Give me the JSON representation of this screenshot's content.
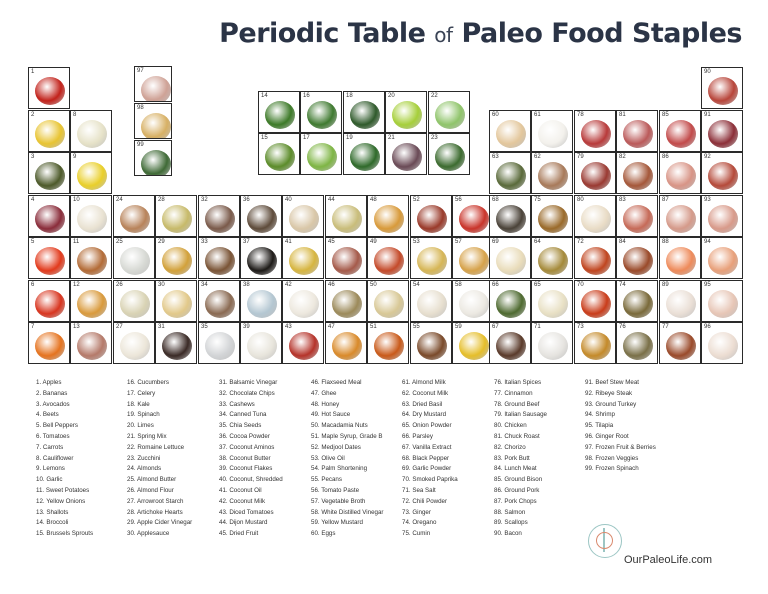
{
  "header": {
    "title_part1": "Periodic Table",
    "title_of": "of",
    "title_part2": "Paleo Food Staples"
  },
  "footer": {
    "brand": "OurPaleoLife.com"
  },
  "cells": [
    {
      "n": "1",
      "c": "#c2221b"
    },
    {
      "n": "2",
      "c": "#e8c432"
    },
    {
      "n": "3",
      "c": "#4d5a2a"
    },
    {
      "n": "4",
      "c": "#8a2c3a"
    },
    {
      "n": "5",
      "c": "#e23a1c"
    },
    {
      "n": "6",
      "c": "#d8351f"
    },
    {
      "n": "7",
      "c": "#e5731f"
    },
    {
      "n": "8",
      "c": "#e6e2c8"
    },
    {
      "n": "9",
      "c": "#e9cf2a"
    },
    {
      "n": "10",
      "c": "#e9e2d2"
    },
    {
      "n": "11",
      "c": "#b36b36"
    },
    {
      "n": "12",
      "c": "#d99a3c"
    },
    {
      "n": "13",
      "c": "#b57a6a"
    },
    {
      "n": "14",
      "c": "#3d7a28"
    },
    {
      "n": "15",
      "c": "#5c8c2a"
    },
    {
      "n": "16",
      "c": "#3f7a30"
    },
    {
      "n": "17",
      "c": "#7eb544"
    },
    {
      "n": "18",
      "c": "#2f5a2b"
    },
    {
      "n": "19",
      "c": "#2f6a2a"
    },
    {
      "n": "20",
      "c": "#a6cf3a"
    },
    {
      "n": "21",
      "c": "#6a4a56"
    },
    {
      "n": "22",
      "c": "#8fc46a"
    },
    {
      "n": "23",
      "c": "#3c6b2f"
    },
    {
      "n": "24",
      "c": "#b8835a"
    },
    {
      "n": "25",
      "c": "#d7d9d4"
    },
    {
      "n": "26",
      "c": "#d9d3b4"
    },
    {
      "n": "27",
      "c": "#ece6d9"
    },
    {
      "n": "28",
      "c": "#c7ba6a"
    },
    {
      "n": "29",
      "c": "#d2a13a"
    },
    {
      "n": "30",
      "c": "#e2c98a"
    },
    {
      "n": "31",
      "c": "#3a2a26"
    },
    {
      "n": "32",
      "c": "#7a5a4a"
    },
    {
      "n": "33",
      "c": "#7a5436"
    },
    {
      "n": "34",
      "c": "#8a6a52"
    },
    {
      "n": "35",
      "c": "#d2d4d6"
    },
    {
      "n": "36",
      "c": "#5e4b3a"
    },
    {
      "n": "37",
      "c": "#1d1a17"
    },
    {
      "n": "38",
      "c": "#b4c7d2"
    },
    {
      "n": "39",
      "c": "#e8e5dc"
    },
    {
      "n": "40",
      "c": "#d9c7a8"
    },
    {
      "n": "41",
      "c": "#d6b540"
    },
    {
      "n": "42",
      "c": "#ede8de"
    },
    {
      "n": "43",
      "c": "#b5332a"
    },
    {
      "n": "44",
      "c": "#c9bd7a"
    },
    {
      "n": "45",
      "c": "#a55a4a"
    },
    {
      "n": "46",
      "c": "#9c8a5a"
    },
    {
      "n": "47",
      "c": "#d98a2a"
    },
    {
      "n": "48",
      "c": "#d89a3a"
    },
    {
      "n": "49",
      "c": "#c44a2a"
    },
    {
      "n": "50",
      "c": "#d8c896"
    },
    {
      "n": "51",
      "c": "#c95a1a"
    },
    {
      "n": "52",
      "c": "#9a3a2a"
    },
    {
      "n": "53",
      "c": "#d6b656"
    },
    {
      "n": "54",
      "c": "#e7dfcf"
    },
    {
      "n": "55",
      "c": "#7a4a2a"
    },
    {
      "n": "56",
      "c": "#c9342a"
    },
    {
      "n": "57",
      "c": "#d6a24a"
    },
    {
      "n": "58",
      "c": "#ece9e2"
    },
    {
      "n": "59",
      "c": "#e5be2a"
    },
    {
      "n": "60",
      "c": "#e3c79c"
    },
    {
      "n": "61",
      "c": "#f3f1ec"
    },
    {
      "n": "62",
      "c": "#a87a5a"
    },
    {
      "n": "63",
      "c": "#5a6a3a"
    },
    {
      "n": "64",
      "c": "#a58a3a"
    },
    {
      "n": "65",
      "c": "#e8e0c4"
    },
    {
      "n": "66",
      "c": "#4e6a30"
    },
    {
      "n": "67",
      "c": "#5a3a2a"
    },
    {
      "n": "68",
      "c": "#4a4238"
    },
    {
      "n": "69",
      "c": "#e9dcba"
    },
    {
      "n": "70",
      "c": "#c93c1a"
    },
    {
      "n": "71",
      "c": "#e6e4e0"
    },
    {
      "n": "72",
      "c": "#c0451f"
    },
    {
      "n": "73",
      "c": "#c48a2a"
    },
    {
      "n": "74",
      "c": "#7a6a3a"
    },
    {
      "n": "75",
      "c": "#9a6a2a"
    },
    {
      "n": "76",
      "c": "#7a7048"
    },
    {
      "n": "77",
      "c": "#9a4a2a"
    },
    {
      "n": "78",
      "c": "#b83a3a"
    },
    {
      "n": "79",
      "c": "#9a3a32"
    },
    {
      "n": "80",
      "c": "#e9dcc6"
    },
    {
      "n": "81",
      "c": "#bb5a5a"
    },
    {
      "n": "82",
      "c": "#a5583a"
    },
    {
      "n": "83",
      "c": "#c66a58"
    },
    {
      "n": "84",
      "c": "#9a4a2a"
    },
    {
      "n": "85",
      "c": "#c24a4a"
    },
    {
      "n": "86",
      "c": "#d89486"
    },
    {
      "n": "87",
      "c": "#d59a8a"
    },
    {
      "n": "88",
      "c": "#ee8a5a"
    },
    {
      "n": "89",
      "c": "#eadfd6"
    },
    {
      "n": "90",
      "c": "#b8453a"
    },
    {
      "n": "91",
      "c": "#8c2f38"
    },
    {
      "n": "92",
      "c": "#b54a3a"
    },
    {
      "n": "93",
      "c": "#d89a8a"
    },
    {
      "n": "94",
      "c": "#e8a07a"
    },
    {
      "n": "95",
      "c": "#e7c6b6"
    },
    {
      "n": "96",
      "c": "#ecddd2"
    },
    {
      "n": "97",
      "c": "#cfa296"
    },
    {
      "n": "98",
      "c": "#d7b064"
    },
    {
      "n": "99",
      "c": "#3f6a36"
    }
  ],
  "legend": [
    [
      "1. Apples",
      "2. Bananas",
      "3. Avocados",
      "4. Beets",
      "5. Bell Peppers",
      "6. Tomatoes",
      "7. Carrots",
      "8. Cauliflower",
      "9. Lemons",
      "10. Garlic",
      "11. Sweet Potatoes",
      "12. Yellow Onions",
      "13. Shallots",
      "14. Broccoli",
      "15. Brussels Sprouts"
    ],
    [
      "16. Cucumbers",
      "17. Celery",
      "18. Kale",
      "19. Spinach",
      "20. Limes",
      "21. Spring Mix",
      "22. Romaine Lettuce",
      "23. Zucchini",
      "24. Almonds",
      "25. Almond Butter",
      "26. Almond Flour",
      "27. Arrowroot Starch",
      "28. Artichoke Hearts",
      "29. Apple Cider Vinegar",
      "30. Applesauce"
    ],
    [
      "31. Balsamic Vinegar",
      "32. Chocolate Chips",
      "33. Cashews",
      "34. Canned Tuna",
      "35. Chia Seeds",
      "36. Cocoa Powder",
      "37. Coconut Aminos",
      "38. Coconut Butter",
      "39. Coconut Flakes",
      "40. Coconut, Shredded",
      "41. Coconut Oil",
      "42. Coconut Milk",
      "43. Diced Tomatoes",
      "44. Dijon Mustard",
      "45. Dried Fruit"
    ],
    [
      "46. Flaxseed Meal",
      "47. Ghee",
      "48. Honey",
      "49. Hot Sauce",
      "50. Macadamia Nuts",
      "51. Maple Syrup, Grade B",
      "52. Medjool Dates",
      "53. Olive Oil",
      "54. Palm Shortening",
      "55. Pecans",
      "56. Tomato Paste",
      "57. Vegetable Broth",
      "58. White Distilled Vinegar",
      "59. Yellow Mustard",
      "60. Eggs"
    ],
    [
      "61. Almond Milk",
      "62. Coconut Milk",
      "63. Dried Basil",
      "64. Dry Mustard",
      "65. Onion Powder",
      "66. Parsley",
      "67. Vanilla Extract",
      "68. Black Pepper",
      "69. Garlic Powder",
      "70. Smoked Paprika",
      "71. Sea Salt",
      "72. Chili Powder",
      "73. Ginger",
      "74. Oregano",
      "75. Cumin"
    ],
    [
      "76. Italian Spices",
      "77. Cinnamon",
      "78. Ground Beef",
      "79. Italian Sausage",
      "80. Chicken",
      "81. Chuck Roast",
      "82. Chorizo",
      "83. Pork Butt",
      "84. Lunch Meat",
      "85. Ground Bison",
      "86. Ground Pork",
      "87. Pork Chops",
      "88. Salmon",
      "89. Scallops",
      "90. Bacon"
    ],
    [
      "91. Beef Stew Meat",
      "92. Ribeye Steak",
      "93. Ground Turkey",
      "94. Shrimp",
      "95. Tilapia",
      "96. Ginger Root",
      "97. Frozen Fruit & Berries",
      "98. Frozen Veggies",
      "99. Frozen Spinach"
    ]
  ]
}
